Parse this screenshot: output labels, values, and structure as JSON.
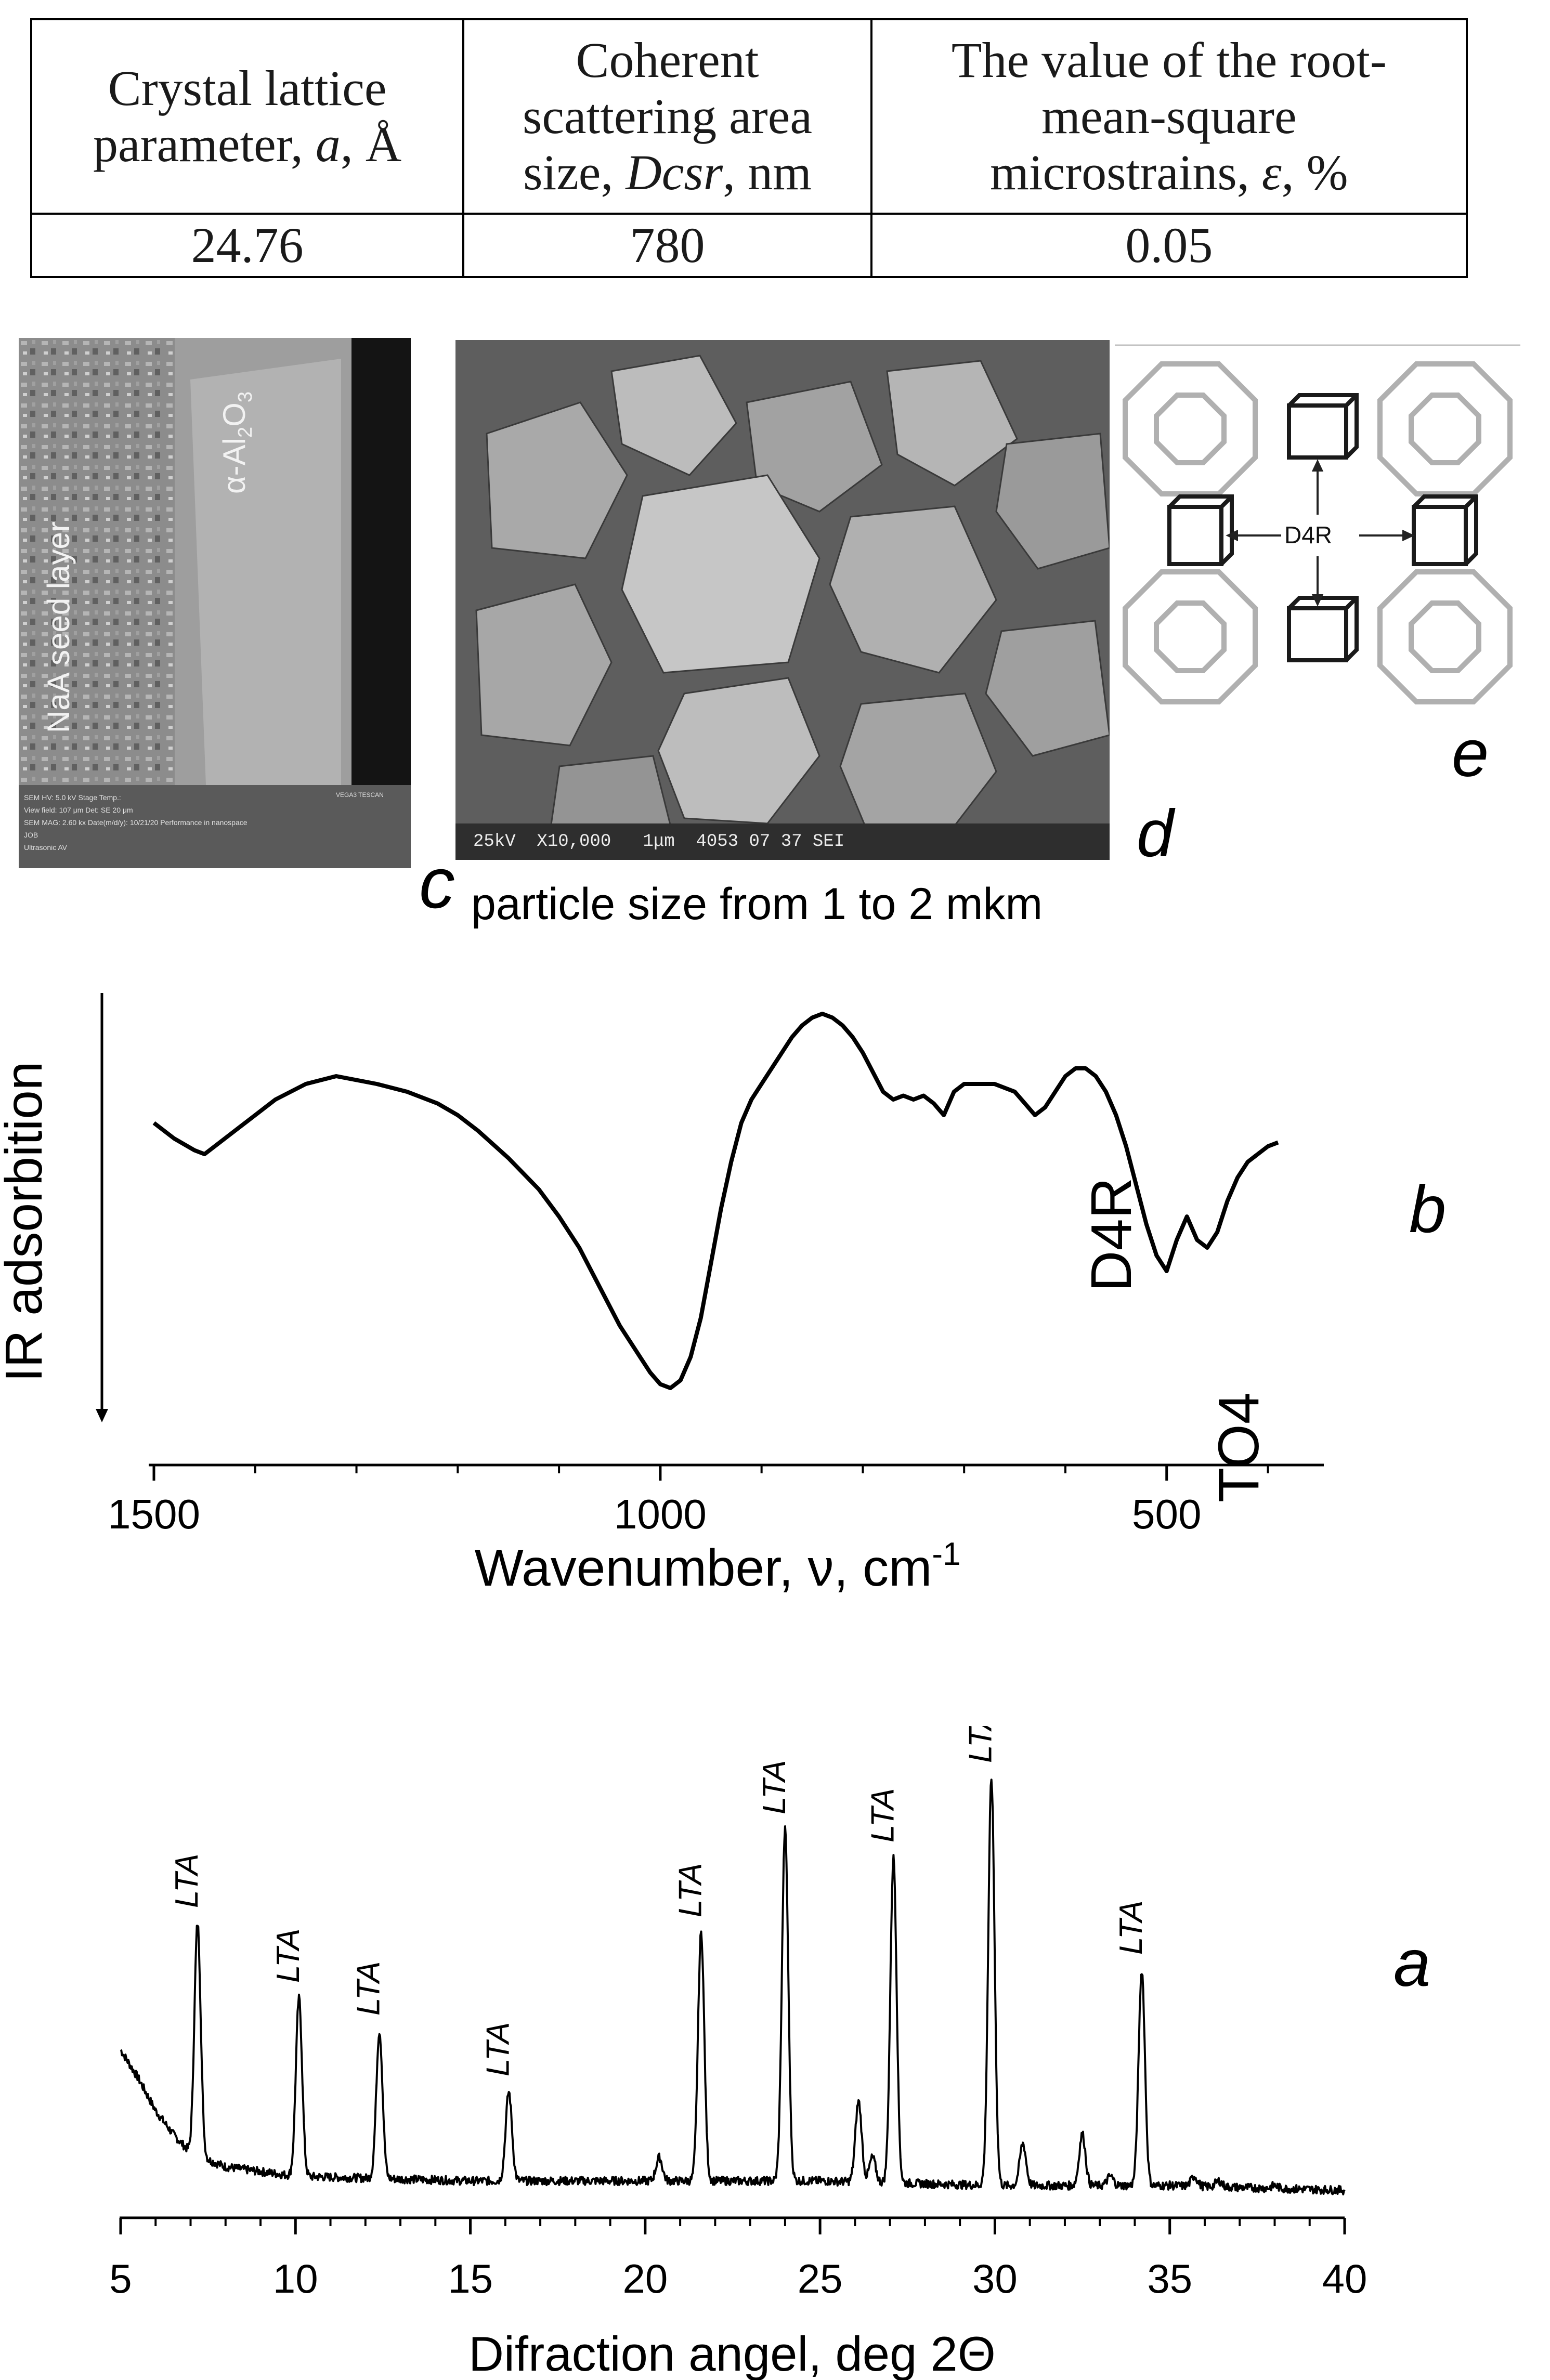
{
  "table": {
    "headers": [
      "Crystal lattice parameter, a, Å",
      "Coherent scattering area size, Dcsr, nm",
      "The value of the root-mean-square microstrains, ε, %"
    ],
    "header_lines": [
      [
        "Crystal lattice",
        "parameter, ",
        "a",
        ", Å"
      ],
      [
        "Coherent",
        "scattering area",
        "size, ",
        "Dcsr",
        ", nm"
      ],
      [
        "The value of the root-",
        "mean-square",
        "microstrains, ",
        "ε",
        ", %"
      ]
    ],
    "values": [
      "24.76",
      "780",
      "0.05"
    ]
  },
  "sem_cross_section": {
    "label_seed": "NaA seed layer",
    "label_substrate_prefix": "α-Al",
    "label_substrate_sub1": "2",
    "label_substrate_mid": "O",
    "label_substrate_sub2": "3",
    "footer_lines": [
      "SEM HV: 5.0 kV     Stage Temp.:",
      "View field: 107 μm     Det: SE     20 μm",
      "SEM MAG: 2.60 kx     Date(m/d/y): 10/21/20     Performance in nanospace",
      "JOB",
      "Ultrasonic AV"
    ],
    "footer_brand": "VEGA3 TESCAN"
  },
  "sem_crystals": {
    "footer": "25kV  X10,000   1μm  4053 07 37 SEI"
  },
  "lta_structure": {
    "label": "D4R"
  },
  "panel_letters": {
    "a": "a",
    "b": "b",
    "c": "c",
    "d": "d",
    "e": "e"
  },
  "caption_c": "particle size from 1 to 2 mkm",
  "colors": {
    "line": "#000000",
    "structure_gray": "#b0b0b0"
  },
  "chart_data": [
    {
      "type": "line",
      "panel": "b",
      "title": "",
      "xlabel": "Wavenumber, ν, cm",
      "xlabel_sup": "-1",
      "ylabel": "IR adsorbition",
      "xlim": [
        1500,
        390
      ],
      "x_reversed": true,
      "x_ticks": [
        1500,
        1000,
        500
      ],
      "y_ticks_shown": false,
      "annotations": [
        "D4R",
        "TO4"
      ],
      "series": [
        {
          "x": [
            1500,
            1480,
            1460,
            1450,
            1440,
            1420,
            1400,
            1380,
            1350,
            1320,
            1300,
            1280,
            1250,
            1220,
            1200,
            1180,
            1150,
            1120,
            1100,
            1080,
            1060,
            1040,
            1020,
            1010,
            1000,
            990,
            980,
            970,
            960,
            950,
            940,
            930,
            920,
            910,
            900,
            890,
            880,
            870,
            860,
            850,
            840,
            830,
            820,
            810,
            800,
            790,
            780,
            770,
            760,
            750,
            740,
            730,
            720,
            710,
            700,
            690,
            680,
            670,
            660,
            650,
            640,
            630,
            620,
            610,
            600,
            590,
            580,
            570,
            560,
            550,
            540,
            530,
            520,
            510,
            500,
            490,
            480,
            470,
            460,
            450,
            440,
            430,
            420,
            410,
            400,
            390
          ],
          "y": [
            0.72,
            0.68,
            0.65,
            0.64,
            0.66,
            0.7,
            0.74,
            0.78,
            0.82,
            0.84,
            0.83,
            0.82,
            0.8,
            0.77,
            0.74,
            0.7,
            0.63,
            0.55,
            0.48,
            0.4,
            0.3,
            0.2,
            0.12,
            0.08,
            0.05,
            0.04,
            0.06,
            0.12,
            0.22,
            0.36,
            0.5,
            0.62,
            0.72,
            0.78,
            0.82,
            0.86,
            0.9,
            0.94,
            0.97,
            0.99,
            1.0,
            0.99,
            0.97,
            0.94,
            0.9,
            0.85,
            0.8,
            0.78,
            0.79,
            0.78,
            0.79,
            0.77,
            0.74,
            0.8,
            0.82,
            0.82,
            0.82,
            0.82,
            0.81,
            0.8,
            0.77,
            0.74,
            0.76,
            0.8,
            0.84,
            0.86,
            0.86,
            0.84,
            0.8,
            0.74,
            0.66,
            0.56,
            0.46,
            0.38,
            0.34,
            0.42,
            0.48,
            0.42,
            0.4,
            0.44,
            0.52,
            0.58,
            0.62,
            0.64,
            0.66,
            0.67
          ]
        }
      ]
    },
    {
      "type": "line",
      "panel": "a",
      "title": "",
      "xlabel": "Difraction angel, deg 2Θ",
      "ylabel": "",
      "xlim": [
        5,
        40
      ],
      "x_ticks": [
        5,
        10,
        15,
        20,
        25,
        30,
        35,
        40
      ],
      "y_ticks_shown": false,
      "peak_labels": [
        {
          "x": 7.2,
          "text": "LTA"
        },
        {
          "x": 10.1,
          "text": "LTA"
        },
        {
          "x": 12.4,
          "text": "LTA"
        },
        {
          "x": 16.1,
          "text": "LTA"
        },
        {
          "x": 21.6,
          "text": "LTA"
        },
        {
          "x": 24.0,
          "text": "LTA"
        },
        {
          "x": 27.1,
          "text": "LTA"
        },
        {
          "x": 29.9,
          "text": "LTA"
        },
        {
          "x": 34.2,
          "text": "LTA"
        }
      ],
      "series": [
        {
          "baseline": [
            [
              5.0,
              0.33
            ],
            [
              5.5,
              0.27
            ],
            [
              6.0,
              0.2
            ],
            [
              6.5,
              0.15
            ],
            [
              7.0,
              0.11
            ],
            [
              8.0,
              0.08
            ],
            [
              10.0,
              0.06
            ],
            [
              15.0,
              0.05
            ],
            [
              20.0,
              0.05
            ],
            [
              25.0,
              0.05
            ],
            [
              30.0,
              0.04
            ],
            [
              35.0,
              0.04
            ],
            [
              40.0,
              0.03
            ]
          ],
          "peaks": [
            {
              "x": 7.2,
              "y": 0.6
            },
            {
              "x": 10.1,
              "y": 0.44
            },
            {
              "x": 12.4,
              "y": 0.37
            },
            {
              "x": 16.1,
              "y": 0.24
            },
            {
              "x": 20.4,
              "y": 0.1
            },
            {
              "x": 21.6,
              "y": 0.58
            },
            {
              "x": 24.0,
              "y": 0.8
            },
            {
              "x": 26.1,
              "y": 0.22
            },
            {
              "x": 26.5,
              "y": 0.1
            },
            {
              "x": 27.1,
              "y": 0.74
            },
            {
              "x": 29.9,
              "y": 0.91
            },
            {
              "x": 30.8,
              "y": 0.13
            },
            {
              "x": 32.5,
              "y": 0.15
            },
            {
              "x": 33.3,
              "y": 0.06
            },
            {
              "x": 34.2,
              "y": 0.5
            },
            {
              "x": 35.7,
              "y": 0.06
            },
            {
              "x": 36.4,
              "y": 0.05
            },
            {
              "x": 38.0,
              "y": 0.04
            }
          ]
        }
      ]
    }
  ]
}
